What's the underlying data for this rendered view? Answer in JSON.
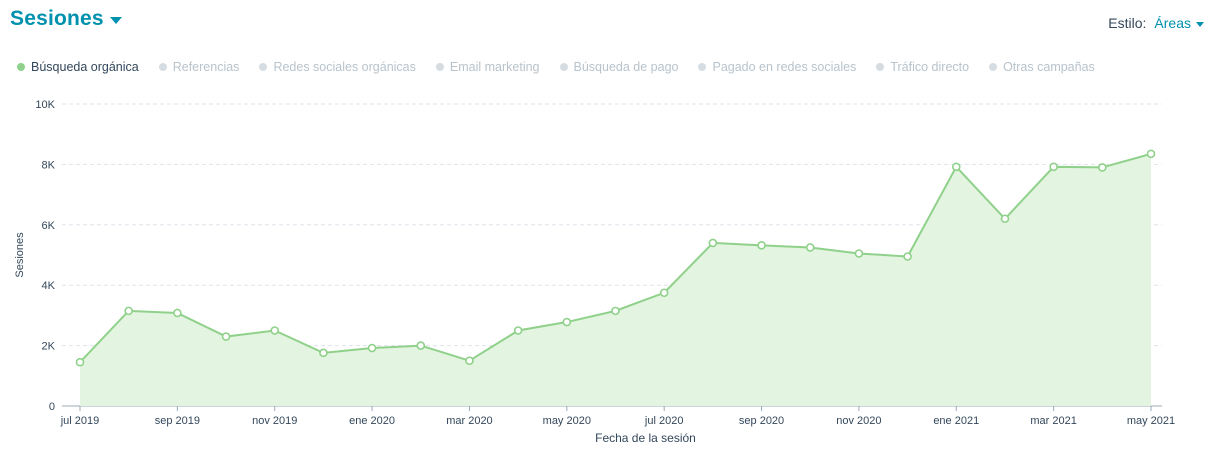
{
  "header": {
    "title": "Sesiones",
    "style_label": "Estilo:",
    "style_value": "Áreas"
  },
  "legend": [
    {
      "label": "Búsqueda orgánica",
      "active": true
    },
    {
      "label": "Referencias",
      "active": false
    },
    {
      "label": "Redes sociales orgánicas",
      "active": false
    },
    {
      "label": "Email marketing",
      "active": false
    },
    {
      "label": "Búsqueda de pago",
      "active": false
    },
    {
      "label": "Pagado en redes sociales",
      "active": false
    },
    {
      "label": "Tráfico directo",
      "active": false
    },
    {
      "label": "Otras campañas",
      "active": false
    }
  ],
  "colors": {
    "accent": "#0091ae",
    "series_line": "#8fd18a",
    "series_fill": "#e3f4e0",
    "inactive_dot": "#d5dde3"
  },
  "chart_data": {
    "type": "area",
    "xlabel": "Fecha de la sesión",
    "ylabel": "Sesiones",
    "ylim": [
      0,
      10000
    ],
    "yticks": [
      0,
      2000,
      4000,
      6000,
      8000,
      10000
    ],
    "ytick_labels": [
      "0",
      "2K",
      "4K",
      "6K",
      "8K",
      "10K"
    ],
    "x": [
      "2019-07",
      "2019-08",
      "2019-09",
      "2019-10",
      "2019-11",
      "2019-12",
      "2020-01",
      "2020-02",
      "2020-03",
      "2020-04",
      "2020-05",
      "2020-06",
      "2020-07",
      "2020-08",
      "2020-09",
      "2020-10",
      "2020-11",
      "2020-12",
      "2021-01",
      "2021-02",
      "2021-03",
      "2021-04",
      "2021-05"
    ],
    "x_tick_labels": [
      {
        "index": 0,
        "label": "jul 2019"
      },
      {
        "index": 2,
        "label": "sep 2019"
      },
      {
        "index": 4,
        "label": "nov 2019"
      },
      {
        "index": 6,
        "label": "ene 2020"
      },
      {
        "index": 8,
        "label": "mar 2020"
      },
      {
        "index": 10,
        "label": "may 2020"
      },
      {
        "index": 12,
        "label": "jul 2020"
      },
      {
        "index": 14,
        "label": "sep 2020"
      },
      {
        "index": 16,
        "label": "nov 2020"
      },
      {
        "index": 18,
        "label": "ene 2021"
      },
      {
        "index": 20,
        "label": "mar 2021"
      },
      {
        "index": 22,
        "label": "may 2021"
      }
    ],
    "series": [
      {
        "name": "Búsqueda orgánica",
        "values": [
          1450,
          3150,
          3080,
          2300,
          2500,
          1760,
          1920,
          2000,
          1500,
          2500,
          2780,
          3150,
          3750,
          5400,
          5320,
          5250,
          5050,
          4950,
          7920,
          6200,
          7920,
          7900,
          8350
        ]
      }
    ],
    "grid": true,
    "legend_position": "top-left"
  }
}
